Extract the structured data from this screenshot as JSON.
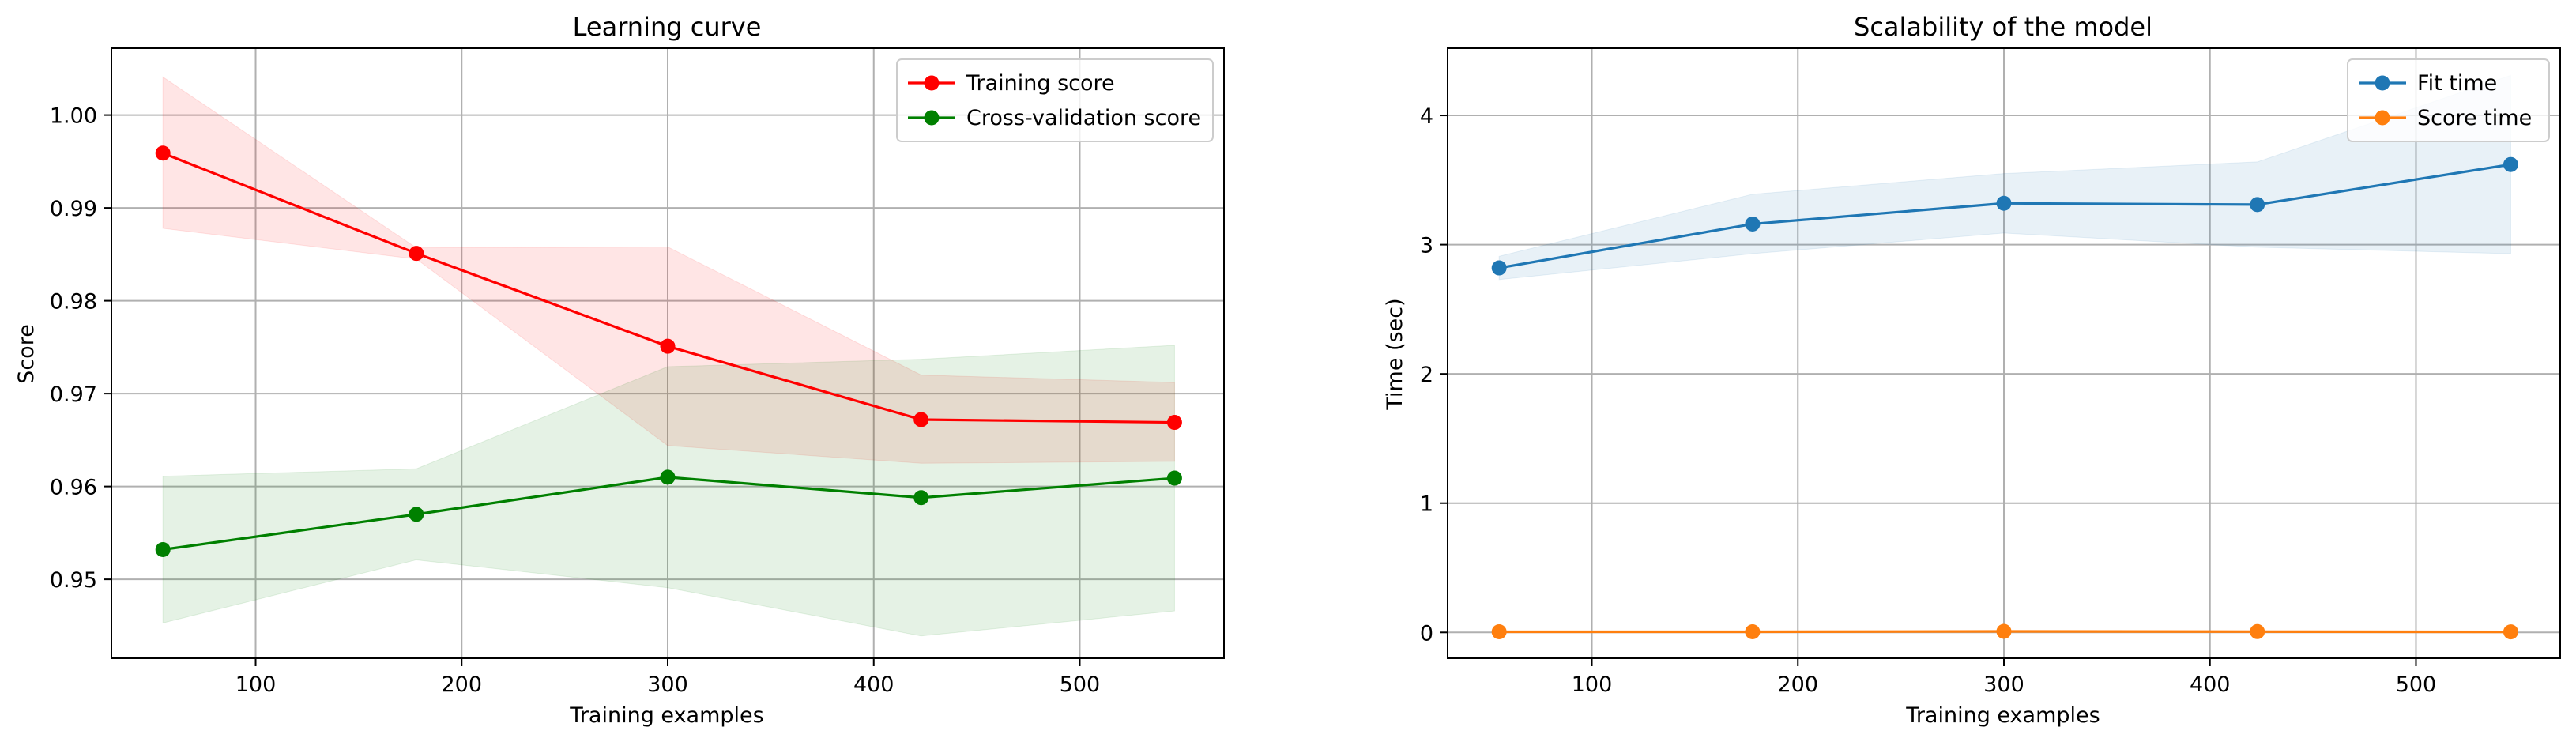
{
  "chart_data": [
    {
      "type": "line",
      "title": "Learning curve",
      "xlabel": "Training examples",
      "ylabel": "Score",
      "x": [
        55,
        178,
        300,
        423,
        546
      ],
      "xlim": [
        30,
        570
      ],
      "ylim": [
        0.9415,
        1.0072
      ],
      "xticks": [
        100,
        200,
        300,
        400,
        500
      ],
      "xtick_labels": [
        "100",
        "200",
        "300",
        "400",
        "500"
      ],
      "yticks": [
        0.95,
        0.96,
        0.97,
        0.98,
        0.99,
        1.0
      ],
      "ytick_labels": [
        "0.95",
        "0.96",
        "0.97",
        "0.98",
        "0.99",
        "1.00"
      ],
      "grid": true,
      "legend_position": "upper right",
      "series": [
        {
          "name": "Training score",
          "color": "#ff0000",
          "fill_color": "#ff0000",
          "values": [
            0.9959,
            0.9851,
            0.9751,
            0.9672,
            0.9669
          ],
          "lower": [
            0.9878,
            0.9845,
            0.9644,
            0.9625,
            0.9627
          ],
          "upper": [
            1.0041,
            0.9857,
            0.9858,
            0.972,
            0.9712
          ]
        },
        {
          "name": "Cross-validation score",
          "color": "#008000",
          "fill_color": "#008000",
          "values": [
            0.9532,
            0.957,
            0.961,
            0.9588,
            0.9609
          ],
          "lower": [
            0.9453,
            0.9521,
            0.9491,
            0.9439,
            0.9466
          ],
          "upper": [
            0.9611,
            0.9619,
            0.9729,
            0.9737,
            0.9752
          ]
        }
      ]
    },
    {
      "type": "line",
      "title": "Scalability of the model",
      "xlabel": "Training examples",
      "ylabel": "Time (sec)",
      "x": [
        55,
        178,
        300,
        423,
        546
      ],
      "xlim": [
        30,
        570
      ],
      "ylim": [
        -0.2,
        4.52
      ],
      "xticks": [
        100,
        200,
        300,
        400,
        500
      ],
      "xtick_labels": [
        "100",
        "200",
        "300",
        "400",
        "500"
      ],
      "yticks": [
        0,
        1,
        2,
        3,
        4
      ],
      "ytick_labels": [
        "0",
        "1",
        "2",
        "3",
        "4"
      ],
      "grid": true,
      "legend_position": "upper right",
      "series": [
        {
          "name": "Fit time",
          "color": "#1f77b4",
          "fill_color": "#1f77b4",
          "values": [
            2.82,
            3.16,
            3.32,
            3.31,
            3.62
          ],
          "lower": [
            2.73,
            2.93,
            3.09,
            2.98,
            2.93
          ],
          "upper": [
            2.91,
            3.39,
            3.55,
            3.64,
            4.31
          ]
        },
        {
          "name": "Score time",
          "color": "#ff7f0e",
          "fill_color": "#ff7f0e",
          "values": [
            0.005,
            0.005,
            0.008,
            0.006,
            0.004
          ],
          "lower": [
            0.004,
            0.004,
            0.006,
            0.005,
            0.003
          ],
          "upper": [
            0.006,
            0.006,
            0.01,
            0.007,
            0.005
          ]
        }
      ]
    }
  ]
}
